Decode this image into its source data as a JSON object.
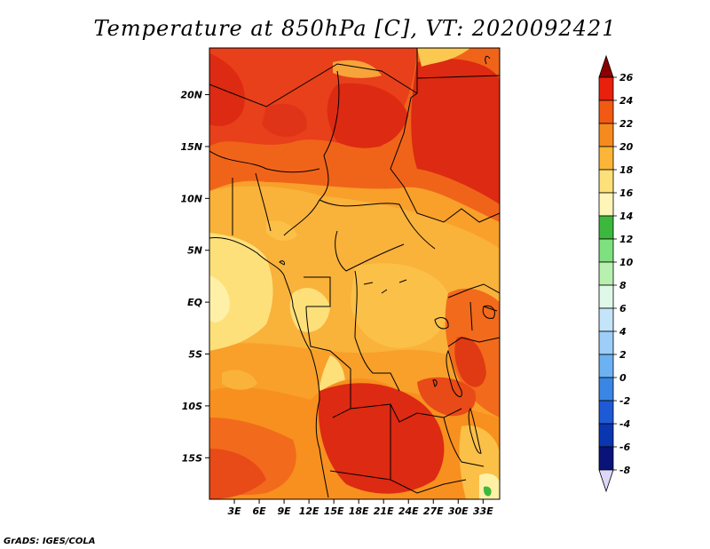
{
  "title": "Temperature at 850hPa [C], VT: 2020092421",
  "credit": "GrADS: IGES/COLA",
  "map": {
    "lon_labels": [
      "3E",
      "6E",
      "9E",
      "12E",
      "15E",
      "18E",
      "21E",
      "24E",
      "27E",
      "30E",
      "33E"
    ],
    "lon_values": [
      3,
      6,
      9,
      12,
      15,
      18,
      21,
      24,
      27,
      30,
      33
    ],
    "lat_labels": [
      "20N",
      "15N",
      "10N",
      "5N",
      "EQ",
      "5S",
      "10S",
      "15S"
    ],
    "lat_values": [
      20,
      15,
      10,
      5,
      0,
      -5,
      -10,
      -15
    ],
    "lon_range": [
      0,
      35
    ],
    "lat_range": [
      -19,
      24.5
    ]
  },
  "colorbar": {
    "labels": [
      "26",
      "24",
      "22",
      "20",
      "18",
      "16",
      "14",
      "12",
      "10",
      "8",
      "6",
      "4",
      "2",
      "0",
      "-2",
      "-4",
      "-6",
      "-8"
    ],
    "colors": [
      "#8a0000",
      "#e8200c",
      "#f25a14",
      "#f78a1e",
      "#fbb538",
      "#fde07a",
      "#fff5b8",
      "#3cb83c",
      "#7ee07e",
      "#b8f0b0",
      "#dff8e8",
      "#c4e4fa",
      "#9ccef8",
      "#6cb2f2",
      "#3a86e4",
      "#1e5ad6",
      "#0a36b0",
      "#0a1478"
    ],
    "lower_arrow_color": "#ded8f8"
  }
}
